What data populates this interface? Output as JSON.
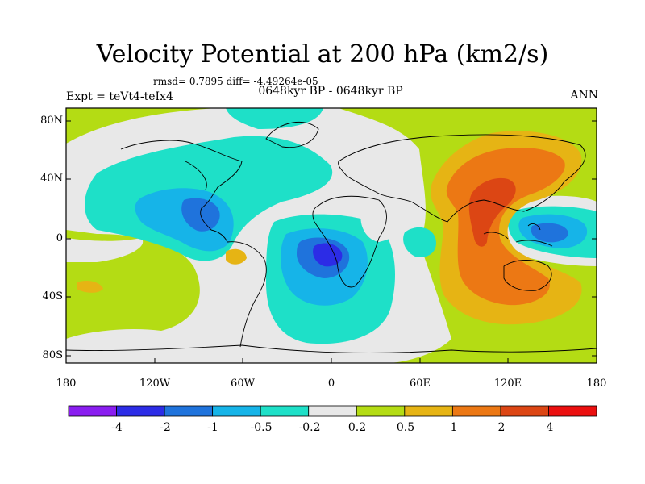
{
  "title": "Velocity Potential at 200 hPa (km2/s)",
  "stats_line": "rmsd= 0.7895 diff= -4.49264e-05",
  "experiment": "Expt = teVt4-teIx4",
  "period": "0648kyr BP - 0648kyr BP",
  "season": "ANN",
  "axes": {
    "lat_labels": [
      "80N",
      "40N",
      "0",
      "40S",
      "80S"
    ],
    "lon_labels": [
      "180",
      "120W",
      "60W",
      "0",
      "60E",
      "120E",
      "180"
    ]
  },
  "colorbar": {
    "labels": [
      "-4",
      "-2",
      "-1",
      "-0.5",
      "-0.2",
      "0.2",
      "0.5",
      "1",
      "2",
      "4"
    ],
    "colors": [
      "#8a1ef0",
      "#2c2ce6",
      "#1f73dc",
      "#16b4e8",
      "#1ee0c8",
      "#e8e8e8",
      "#b4dc14",
      "#e6b414",
      "#ec7814",
      "#dc4614",
      "#eb0f0f"
    ]
  }
}
